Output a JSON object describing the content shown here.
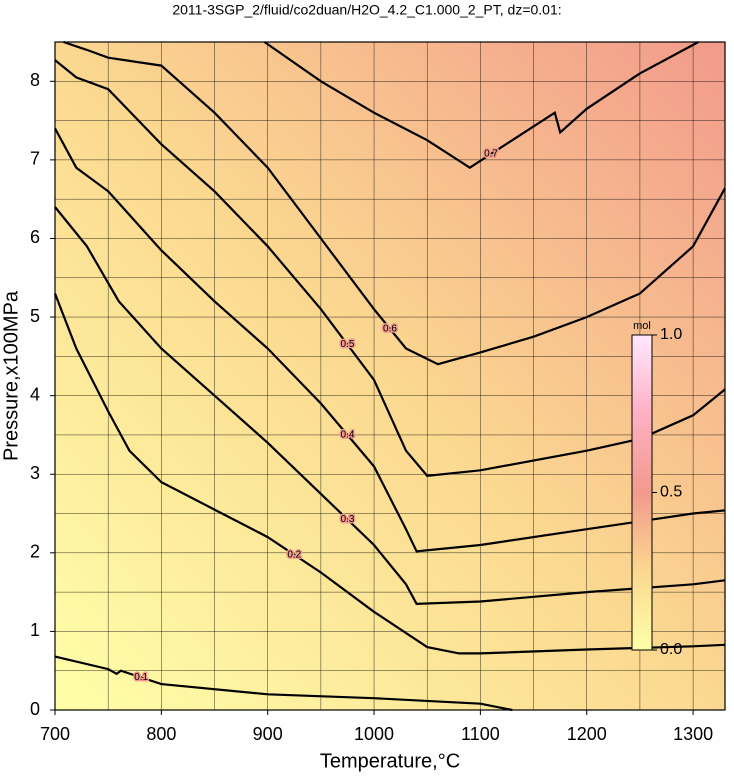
{
  "chart_data": {
    "type": "contour",
    "title": "2011-3SGP_2/fluid/co2duan/H2O_4.2_C1.000_2_PT, dz=0.01:",
    "x_label": "Temperature,°C",
    "y_label": "Pressure,x100MPa",
    "xlim": [
      700,
      1330
    ],
    "ylim": [
      0,
      8.5
    ],
    "xticks": [
      700,
      800,
      900,
      1000,
      1100,
      1200,
      1300
    ],
    "yticks": [
      0,
      1,
      2,
      3,
      4,
      5,
      6,
      7,
      8
    ],
    "xminorticks": [
      750,
      850,
      950,
      1050,
      1150,
      1250
    ],
    "yminorticks": [
      0.5,
      1.5,
      2.5,
      3.5,
      4.5,
      5.5,
      6.5,
      7.5
    ],
    "grid": true,
    "line_color": "#000000",
    "colormap": [
      "#ffffa8",
      "#fbd890",
      "#f29a8c",
      "#ffb0c4",
      "#ffe8ff"
    ],
    "colorbar_label": "mol",
    "colorbar_lim": [
      0,
      1
    ],
    "colorbar_ticks": [
      {
        "value": 0,
        "label": "0.0"
      },
      0.5,
      {
        "value": 1,
        "label": "1.0"
      }
    ],
    "contours": [
      {
        "level": 0.1,
        "x": [
          700,
          750,
          758,
          762,
          800,
          900,
          1000,
          1100,
          1130
        ],
        "y": [
          0.68,
          0.52,
          0.46,
          0.5,
          0.33,
          0.2,
          0.15,
          0.08,
          0
        ]
      },
      {
        "level": 0.2,
        "x": [
          700,
          720,
          750,
          770,
          800,
          850,
          900,
          950,
          1000,
          1050,
          1080,
          1100,
          1200,
          1300,
          1330
        ],
        "y": [
          5.3,
          4.6,
          3.8,
          3.3,
          2.9,
          2.55,
          2.2,
          1.75,
          1.25,
          0.8,
          0.72,
          0.72,
          0.77,
          0.81,
          0.83
        ]
      },
      {
        "level": 0.3,
        "x": [
          700,
          730,
          760,
          800,
          850,
          900,
          950,
          1000,
          1030,
          1040,
          1100,
          1200,
          1300,
          1330
        ],
        "y": [
          6.4,
          5.9,
          5.2,
          4.6,
          4.0,
          3.4,
          2.75,
          2.1,
          1.6,
          1.35,
          1.38,
          1.5,
          1.6,
          1.65
        ]
      },
      {
        "level": 0.4,
        "x": [
          700,
          720,
          750,
          800,
          850,
          900,
          950,
          1000,
          1030,
          1040,
          1100,
          1200,
          1300,
          1330
        ],
        "y": [
          7.4,
          6.9,
          6.6,
          5.85,
          5.2,
          4.6,
          3.9,
          3.1,
          2.3,
          2.02,
          2.1,
          2.3,
          2.5,
          2.54
        ]
      },
      {
        "level": 0.5,
        "x": [
          700,
          720,
          750,
          800,
          850,
          900,
          950,
          1000,
          1030,
          1050,
          1100,
          1200,
          1250,
          1300,
          1330
        ],
        "y": [
          8.27,
          8.05,
          7.9,
          7.2,
          6.6,
          5.9,
          5.1,
          4.2,
          3.3,
          2.98,
          3.05,
          3.3,
          3.45,
          3.75,
          4.08
        ]
      },
      {
        "level": 0.6,
        "x": [
          708,
          730,
          750,
          800,
          850,
          900,
          950,
          1000,
          1030,
          1060,
          1100,
          1150,
          1200,
          1250,
          1300,
          1330
        ],
        "y": [
          8.5,
          8.4,
          8.3,
          8.2,
          7.6,
          6.9,
          6.0,
          5.1,
          4.6,
          4.4,
          4.55,
          4.75,
          5.0,
          5.3,
          5.9,
          6.64
        ]
      },
      {
        "level": 0.7,
        "x": [
          897,
          950,
          1000,
          1050,
          1090,
          1130,
          1170,
          1175,
          1200,
          1250,
          1305
        ],
        "y": [
          8.5,
          8.0,
          7.6,
          7.25,
          6.9,
          7.25,
          7.6,
          7.35,
          7.65,
          8.1,
          8.5
        ]
      }
    ]
  }
}
